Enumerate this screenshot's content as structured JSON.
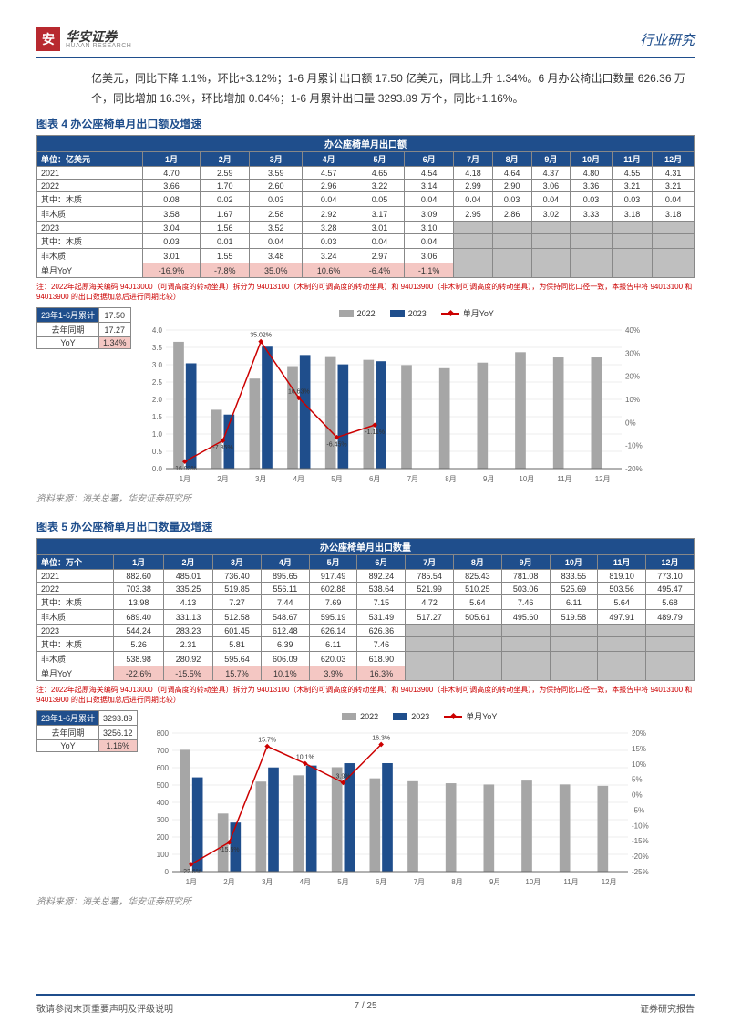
{
  "header": {
    "logo_char": "安",
    "brand_cn": "华安证券",
    "brand_en": "HUAAN RESEARCH",
    "right": "行业研究"
  },
  "body_text": "亿美元，同比下降 1.1%，环比+3.12%；1-6 月累计出口额 17.50 亿美元，同比上升 1.34%。6 月办公椅出口数量 626.36 万个，同比增加 16.3%，环比增加 0.04%；1-6 月累计出口量 3293.89 万个，同比+1.16%。",
  "chart4": {
    "title": "图表 4 办公座椅单月出口额及增速",
    "table_title": "办公座椅单月出口额",
    "unit": "单位：亿美元",
    "months": [
      "1月",
      "2月",
      "3月",
      "4月",
      "5月",
      "6月",
      "7月",
      "8月",
      "9月",
      "10月",
      "11月",
      "12月"
    ],
    "rows": [
      {
        "label": "2021",
        "values": [
          "4.70",
          "2.59",
          "3.59",
          "4.57",
          "4.65",
          "4.54",
          "4.18",
          "4.64",
          "4.37",
          "4.80",
          "4.55",
          "4.31"
        ],
        "cls": ""
      },
      {
        "label": "2022",
        "values": [
          "3.66",
          "1.70",
          "2.60",
          "2.96",
          "3.22",
          "3.14",
          "2.99",
          "2.90",
          "3.06",
          "3.36",
          "3.21",
          "3.21"
        ],
        "cls": ""
      },
      {
        "label": "其中：木质",
        "values": [
          "0.08",
          "0.02",
          "0.03",
          "0.04",
          "0.05",
          "0.04",
          "0.04",
          "0.03",
          "0.04",
          "0.03",
          "0.03",
          "0.04"
        ],
        "cls": ""
      },
      {
        "label": "非木质",
        "values": [
          "3.58",
          "1.67",
          "2.58",
          "2.92",
          "3.17",
          "3.09",
          "2.95",
          "2.86",
          "3.02",
          "3.33",
          "3.18",
          "3.18"
        ],
        "cls": ""
      },
      {
        "label": "2023",
        "values": [
          "3.04",
          "1.56",
          "3.52",
          "3.28",
          "3.01",
          "3.10",
          "",
          "",
          "",
          "",
          "",
          ""
        ],
        "cls": "gray-after-6"
      },
      {
        "label": "其中：木质",
        "values": [
          "0.03",
          "0.01",
          "0.04",
          "0.03",
          "0.04",
          "0.04",
          "",
          "",
          "",
          "",
          "",
          ""
        ],
        "cls": "gray-after-6"
      },
      {
        "label": "非木质",
        "values": [
          "3.01",
          "1.55",
          "3.48",
          "3.24",
          "2.97",
          "3.06",
          "",
          "",
          "",
          "",
          "",
          ""
        ],
        "cls": "gray-after-6"
      },
      {
        "label": "单月YoY",
        "values": [
          "-16.9%",
          "-7.8%",
          "35.0%",
          "10.6%",
          "-6.4%",
          "-1.1%",
          "",
          "",
          "",
          "",
          "",
          ""
        ],
        "cls": "pink-yoy gray-after-6"
      }
    ],
    "note": "注：2022年起原海关编码 94013000（可调高度的转动坐具）拆分为 94013100（木制的可调高度的转动坐具）和 94013900（非木制可调高度的转动坐具），为保持同比口径一致，本报告中将 94013100 和 94013900 的出口数据加总后进行同期比较）",
    "side": [
      {
        "l": "23年1-6月累计",
        "v": "17.50"
      },
      {
        "l": "去年同期",
        "v": "17.27"
      },
      {
        "l": "YoY",
        "v": "1.34%"
      }
    ],
    "chart": {
      "y_left": {
        "min": 0,
        "max": 4.0,
        "step": 0.5
      },
      "y_right": {
        "min": -20,
        "max": 40,
        "step": 10,
        "suffix": "%"
      },
      "bars_2022": [
        3.66,
        1.7,
        2.6,
        2.96,
        3.22,
        3.14,
        2.99,
        2.9,
        3.06,
        3.36,
        3.21,
        3.21
      ],
      "bars_2023": [
        3.04,
        1.56,
        3.52,
        3.28,
        3.01,
        3.1
      ],
      "yoy": [
        -16.93,
        -7.85,
        35.02,
        10.63,
        -6.45,
        -1.11
      ],
      "yoy_labels": [
        "-16.93%",
        "-7.85%",
        "35.02%",
        "10.63%",
        "-6.45%",
        "-1.11%"
      ]
    },
    "source": "资料来源：海关总署，华安证券研究所"
  },
  "chart5": {
    "title": "图表 5 办公座椅单月出口数量及增速",
    "table_title": "办公座椅单月出口数量",
    "unit": "单位：万个",
    "months": [
      "1月",
      "2月",
      "3月",
      "4月",
      "5月",
      "6月",
      "7月",
      "8月",
      "9月",
      "10月",
      "11月",
      "12月"
    ],
    "rows": [
      {
        "label": "2021",
        "values": [
          "882.60",
          "485.01",
          "736.40",
          "895.65",
          "917.49",
          "892.24",
          "785.54",
          "825.43",
          "781.08",
          "833.55",
          "819.10",
          "773.10"
        ],
        "cls": ""
      },
      {
        "label": "2022",
        "values": [
          "703.38",
          "335.25",
          "519.85",
          "556.11",
          "602.88",
          "538.64",
          "521.99",
          "510.25",
          "503.06",
          "525.69",
          "503.56",
          "495.47"
        ],
        "cls": ""
      },
      {
        "label": "其中：木质",
        "values": [
          "13.98",
          "4.13",
          "7.27",
          "7.44",
          "7.69",
          "7.15",
          "4.72",
          "5.64",
          "7.46",
          "6.11",
          "5.64",
          "5.68"
        ],
        "cls": ""
      },
      {
        "label": "非木质",
        "values": [
          "689.40",
          "331.13",
          "512.58",
          "548.67",
          "595.19",
          "531.49",
          "517.27",
          "505.61",
          "495.60",
          "519.58",
          "497.91",
          "489.79"
        ],
        "cls": ""
      },
      {
        "label": "2023",
        "values": [
          "544.24",
          "283.23",
          "601.45",
          "612.48",
          "626.14",
          "626.36",
          "",
          "",
          "",
          "",
          "",
          ""
        ],
        "cls": "gray-after-6"
      },
      {
        "label": "其中：木质",
        "values": [
          "5.26",
          "2.31",
          "5.81",
          "6.39",
          "6.11",
          "7.46",
          "",
          "",
          "",
          "",
          "",
          ""
        ],
        "cls": "gray-after-6"
      },
      {
        "label": "非木质",
        "values": [
          "538.98",
          "280.92",
          "595.64",
          "606.09",
          "620.03",
          "618.90",
          "",
          "",
          "",
          "",
          "",
          ""
        ],
        "cls": "gray-after-6"
      },
      {
        "label": "单月YoY",
        "values": [
          "-22.6%",
          "-15.5%",
          "15.7%",
          "10.1%",
          "3.9%",
          "16.3%",
          "",
          "",
          "",
          "",
          "",
          ""
        ],
        "cls": "pink-yoy gray-after-6"
      }
    ],
    "note": "注：2022年起原海关编码 94013000（可调高度的转动坐具）拆分为 94013100（木制的可调高度的转动坐具）和 94013900（非木制可调高度的转动坐具），为保持同比口径一致，本报告中将 94013100 和 94013900 的出口数据加总后进行同期比较）",
    "side": [
      {
        "l": "23年1-6月累计",
        "v": "3293.89"
      },
      {
        "l": "去年同期",
        "v": "3256.12"
      },
      {
        "l": "YoY",
        "v": "1.16%"
      }
    ],
    "chart": {
      "y_left": {
        "min": 0,
        "max": 800,
        "step": 100
      },
      "y_right": {
        "min": -25,
        "max": 20,
        "step": 5,
        "suffix": "%"
      },
      "bars_2022": [
        703.38,
        335.25,
        519.85,
        556.11,
        602.88,
        538.64,
        521.99,
        510.25,
        503.06,
        525.69,
        503.56,
        495.47
      ],
      "bars_2023": [
        544.24,
        283.23,
        601.45,
        612.48,
        626.14,
        626.36
      ],
      "yoy": [
        -22.6,
        -15.5,
        15.7,
        10.1,
        3.9,
        16.3
      ],
      "yoy_labels": [
        "-22.6%",
        "-15.5%",
        "15.7%",
        "10.1%",
        "3.9%",
        "16.3%"
      ]
    },
    "source": "资料来源：海关总署，华安证券研究所"
  },
  "legend": {
    "l1": "2022",
    "l2": "2023",
    "l3": "单月YoY"
  },
  "footer": {
    "left": "敬请参阅末页重要声明及评级说明",
    "center": "7 / 25",
    "right": "证券研究报告"
  },
  "colors": {
    "blue": "#1f4e8c",
    "red": "#b8292f",
    "gray_bar": "#a6a6a6",
    "pink": "#f4c7c3",
    "grid": "#dddddd"
  }
}
